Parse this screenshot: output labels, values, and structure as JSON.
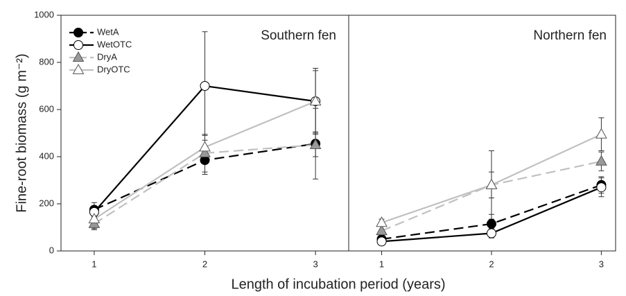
{
  "chart_data": [
    {
      "type": "line",
      "title": "Southern fen",
      "y_label": "Fine-root biomass (g m⁻²)",
      "x_label": "Length of incubation period (years)",
      "x": [
        1,
        2,
        3
      ],
      "xlim": [
        0.7,
        3.3
      ],
      "xticks": [
        1,
        2,
        3
      ],
      "ylim": [
        0,
        1000
      ],
      "yticks": [
        0,
        200,
        400,
        600,
        800,
        1000
      ],
      "legend": "top-left",
      "series": [
        {
          "name": "WetA",
          "color": "#000000",
          "marker": "circle",
          "marker_fill": "#000000",
          "dashed": true,
          "values": [
            175,
            385,
            455
          ],
          "errors": [
            30,
            60,
            150
          ]
        },
        {
          "name": "WetOTC",
          "color": "#000000",
          "marker": "circle",
          "marker_fill": "#ffffff",
          "dashed": false,
          "values": [
            165,
            700,
            635
          ],
          "errors": [
            25,
            230,
            140
          ]
        },
        {
          "name": "DryA",
          "color": "#c0c0c0",
          "marker": "triangle",
          "marker_fill": "#999999",
          "dashed": true,
          "values": [
            115,
            415,
            450
          ],
          "errors": [
            25,
            80,
            50
          ]
        },
        {
          "name": "DryOTC",
          "color": "#c0c0c0",
          "marker": "triangle",
          "marker_fill": "#ffffff",
          "dashed": false,
          "values": [
            135,
            440,
            635
          ],
          "errors": [
            40,
            50,
            130
          ]
        }
      ]
    },
    {
      "type": "line",
      "title": "Northern fen",
      "x": [
        1,
        2,
        3
      ],
      "xlim": [
        0.7,
        3.13
      ],
      "xticks": [
        1,
        2,
        3
      ],
      "series": [
        {
          "color": "#000000",
          "marker": "circle",
          "marker_fill": "#000000",
          "dashed": true,
          "values": [
            50,
            115,
            280
          ],
          "errors": [
            10,
            40,
            35
          ]
        },
        {
          "color": "#000000",
          "marker": "circle",
          "marker_fill": "#ffffff",
          "dashed": false,
          "values": [
            40,
            75,
            270
          ],
          "errors": [
            10,
            20,
            40
          ]
        },
        {
          "color": "#c0c0c0",
          "marker": "triangle",
          "marker_fill": "#999999",
          "dashed": true,
          "values": [
            85,
            280,
            380
          ],
          "errors": [
            20,
            55,
            40
          ]
        },
        {
          "color": "#c0c0c0",
          "marker": "triangle",
          "marker_fill": "#ffffff",
          "dashed": false,
          "values": [
            120,
            280,
            495
          ],
          "errors": [
            15,
            145,
            70
          ]
        }
      ]
    }
  ]
}
